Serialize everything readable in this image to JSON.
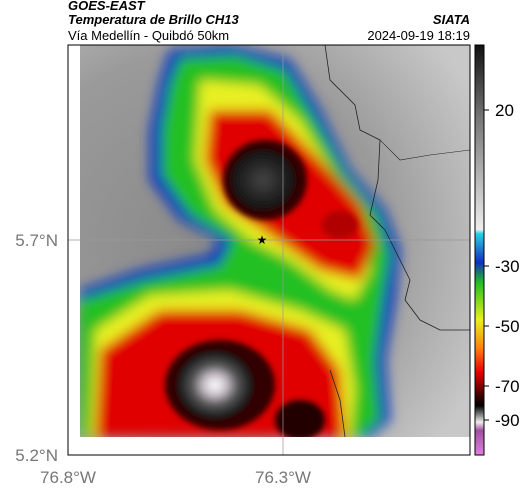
{
  "header": {
    "title": "GOES-EAST",
    "subtitle": "Temperatura de Brillo CH13",
    "route": "Vía Medellín - Quibdó 50km",
    "source": "SIATA",
    "timestamp": "2024-09-19 18:19"
  },
  "axes": {
    "lat_labels": [
      "5.7°N",
      "5.2°N"
    ],
    "lon_labels": [
      "76.8°W",
      "76.3°W"
    ]
  },
  "colorbar": {
    "ticks": [
      20,
      -30,
      -50,
      -70,
      -90
    ]
  }
}
